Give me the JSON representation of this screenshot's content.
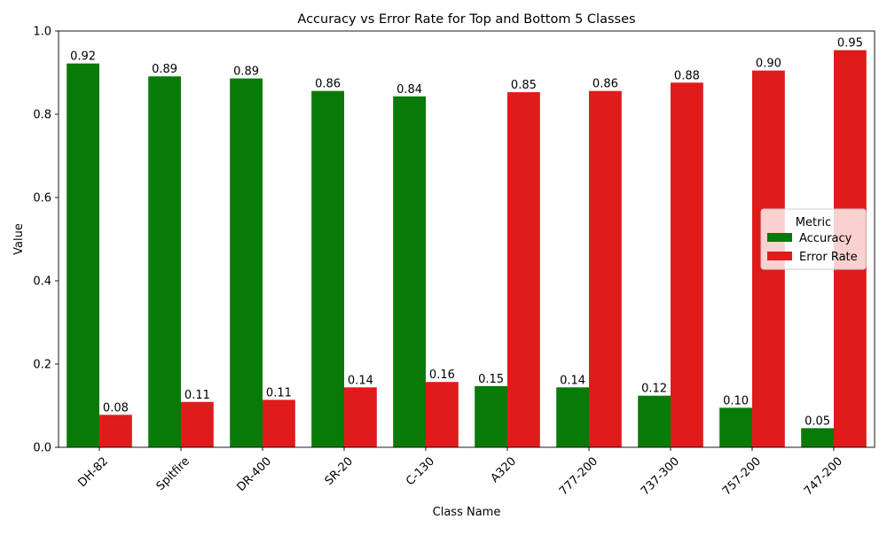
{
  "chart_data": {
    "type": "bar",
    "title": "Accuracy vs Error Rate for Top and Bottom 5 Classes",
    "xlabel": "Class Name",
    "ylabel": "Value",
    "ylim": [
      0,
      1.0
    ],
    "yticks": [
      "0.0",
      "0.2",
      "0.4",
      "0.6",
      "0.8",
      "1.0"
    ],
    "categories": [
      "DH-82",
      "Spitfire",
      "DR-400",
      "SR-20",
      "C-130",
      "A320",
      "777-200",
      "737-300",
      "757-200",
      "747-200"
    ],
    "series": [
      {
        "name": "Accuracy",
        "color": "#087a08",
        "values": [
          0.922,
          0.891,
          0.886,
          0.856,
          0.843,
          0.147,
          0.144,
          0.124,
          0.095,
          0.046
        ],
        "labels": [
          "0.92",
          "0.89",
          "0.89",
          "0.86",
          "0.84",
          "0.15",
          "0.14",
          "0.12",
          "0.10",
          "0.05"
        ]
      },
      {
        "name": "Error Rate",
        "color": "#e01b1b",
        "values": [
          0.078,
          0.109,
          0.114,
          0.144,
          0.157,
          0.853,
          0.856,
          0.876,
          0.905,
          0.954
        ],
        "labels": [
          "0.08",
          "0.11",
          "0.11",
          "0.14",
          "0.16",
          "0.85",
          "0.86",
          "0.88",
          "0.90",
          "0.95"
        ]
      }
    ],
    "legend": {
      "title": "Metric",
      "placement": "center-right"
    },
    "grid": false
  }
}
